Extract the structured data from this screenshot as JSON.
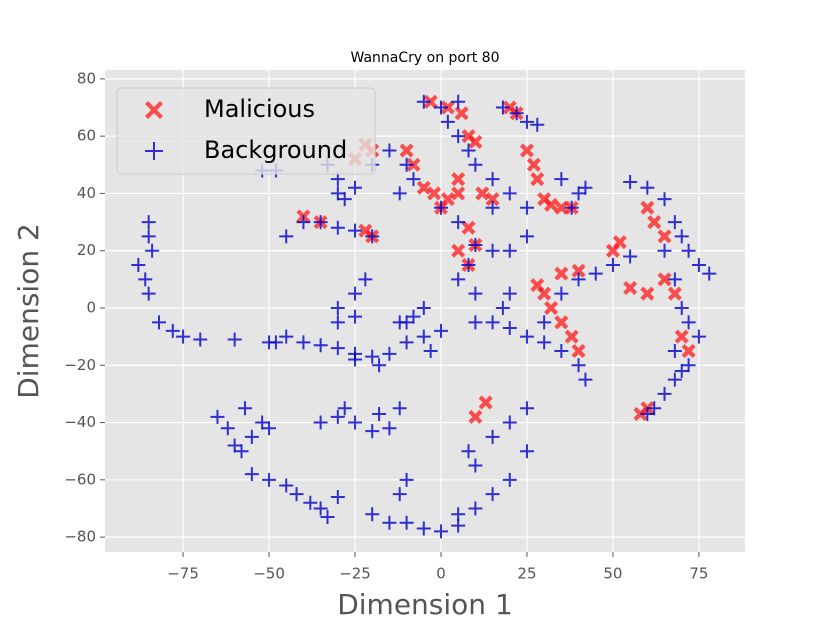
{
  "chart_data": {
    "type": "scatter",
    "title": "WannaCry on port 80",
    "xlabel": "Dimension 1",
    "ylabel": "Dimension 2",
    "xlim": [
      -97.7,
      88.4
    ],
    "ylim": [
      -85.2,
      83.1
    ],
    "xticks": [
      {
        "value": -75,
        "label": "−75"
      },
      {
        "value": -50,
        "label": "−50"
      },
      {
        "value": -25,
        "label": "−25"
      },
      0,
      25,
      50,
      75
    ],
    "yticks": [
      {
        "value": -80,
        "label": "−80"
      },
      {
        "value": -60,
        "label": "−60"
      },
      {
        "value": -40,
        "label": "−40"
      },
      {
        "value": -20,
        "label": "−20"
      },
      0,
      20,
      40,
      60,
      80
    ],
    "grid": true,
    "legend": "upper left",
    "series": [
      {
        "name": "Malicious",
        "color": "#ff1a1a",
        "marker": "x",
        "x": [
          -10,
          -8,
          -20,
          -22,
          -25,
          -3,
          2,
          6,
          8,
          10,
          20,
          22,
          25,
          27,
          28,
          30,
          32,
          35,
          38,
          -5,
          -2,
          0,
          2,
          5,
          5,
          8,
          10,
          8,
          5,
          12,
          15,
          -40,
          -35,
          -22,
          -20,
          28,
          30,
          32,
          35,
          38,
          40,
          35,
          40,
          50,
          52,
          55,
          60,
          62,
          65,
          65,
          60,
          68,
          70,
          72,
          58,
          60,
          10,
          13
        ],
        "y": [
          55,
          50,
          55,
          57,
          52,
          72,
          70,
          68,
          60,
          58,
          70,
          68,
          55,
          50,
          45,
          38,
          36,
          35,
          35,
          42,
          40,
          35,
          38,
          40,
          45,
          28,
          22,
          15,
          20,
          40,
          38,
          32,
          30,
          27,
          25,
          8,
          5,
          0,
          -5,
          -10,
          -15,
          12,
          13,
          20,
          23,
          7,
          35,
          30,
          25,
          10,
          5,
          5,
          -10,
          -15,
          -37,
          -35,
          -38,
          -33
        ]
      },
      {
        "name": "Background",
        "color": "#0000cc",
        "marker": "plus",
        "x": [
          -88,
          -85,
          -85,
          -84,
          -86,
          -85,
          -82,
          -78,
          -75,
          -70,
          -60,
          -50,
          -40,
          -35,
          -30,
          -25,
          -20,
          -15,
          -45,
          -48,
          -10,
          -5,
          0,
          -12,
          -8,
          -5,
          -10,
          -3,
          -18,
          -25,
          -65,
          -62,
          -60,
          -58,
          -55,
          -57,
          -52,
          -50,
          -55,
          -50,
          -45,
          -42,
          -38,
          -35,
          -33,
          -30,
          -35,
          -30,
          -28,
          -25,
          -20,
          -18,
          -15,
          -12,
          -20,
          -15,
          -10,
          -5,
          0,
          5,
          10,
          15,
          20,
          8,
          10,
          15,
          20,
          25,
          25,
          -10,
          -12,
          5,
          10,
          15,
          20,
          25,
          30,
          35,
          40,
          42,
          30,
          35,
          40,
          45,
          50,
          55,
          20,
          18,
          10,
          5,
          8,
          -45,
          -40,
          -35,
          -30,
          -25,
          -20,
          -22,
          -25,
          -30,
          -30,
          -25,
          -52,
          -48,
          -33,
          -30,
          -25,
          -20,
          -15,
          -10,
          -8,
          -12,
          -30,
          -28,
          -5,
          0,
          5,
          2,
          5,
          8,
          10,
          15,
          20,
          25,
          18,
          22,
          25,
          28,
          15,
          5,
          0,
          40,
          42,
          35,
          38,
          55,
          60,
          65,
          68,
          70,
          72,
          75,
          78,
          65,
          68,
          70,
          72,
          75,
          72,
          70,
          68,
          65,
          62,
          60,
          68,
          20,
          25,
          15,
          10
        ],
        "y": [
          15,
          30,
          25,
          20,
          10,
          5,
          -5,
          -8,
          -10,
          -11,
          -11,
          -12,
          -12,
          -13,
          -14,
          -16,
          -17,
          -16,
          -10,
          -12,
          -12,
          -10,
          -8,
          -5,
          -3,
          0,
          -5,
          -15,
          -20,
          -18,
          -38,
          -42,
          -48,
          -50,
          -45,
          -35,
          -40,
          -42,
          -58,
          -60,
          -62,
          -65,
          -68,
          -70,
          -73,
          -66,
          -40,
          -38,
          -35,
          -40,
          -43,
          -37,
          -42,
          -35,
          -72,
          -75,
          -75,
          -77,
          -78,
          -76,
          -70,
          -65,
          -60,
          -50,
          -55,
          -45,
          -40,
          -35,
          -50,
          -60,
          -65,
          -72,
          -5,
          -5,
          -7,
          -10,
          -12,
          -15,
          -20,
          -25,
          -5,
          5,
          10,
          12,
          15,
          18,
          5,
          0,
          5,
          10,
          15,
          25,
          30,
          30,
          28,
          27,
          25,
          10,
          5,
          0,
          -5,
          -3,
          48,
          48,
          50,
          45,
          42,
          50,
          55,
          50,
          45,
          40,
          40,
          38,
          72,
          70,
          72,
          65,
          60,
          55,
          50,
          45,
          40,
          35,
          70,
          68,
          65,
          64,
          35,
          30,
          35,
          40,
          42,
          45,
          35,
          44,
          42,
          38,
          30,
          25,
          20,
          15,
          12,
          20,
          10,
          0,
          -5,
          -10,
          -20,
          -22,
          -25,
          -30,
          -35,
          -37,
          -15,
          20,
          25,
          20,
          22
        ]
      }
    ]
  }
}
